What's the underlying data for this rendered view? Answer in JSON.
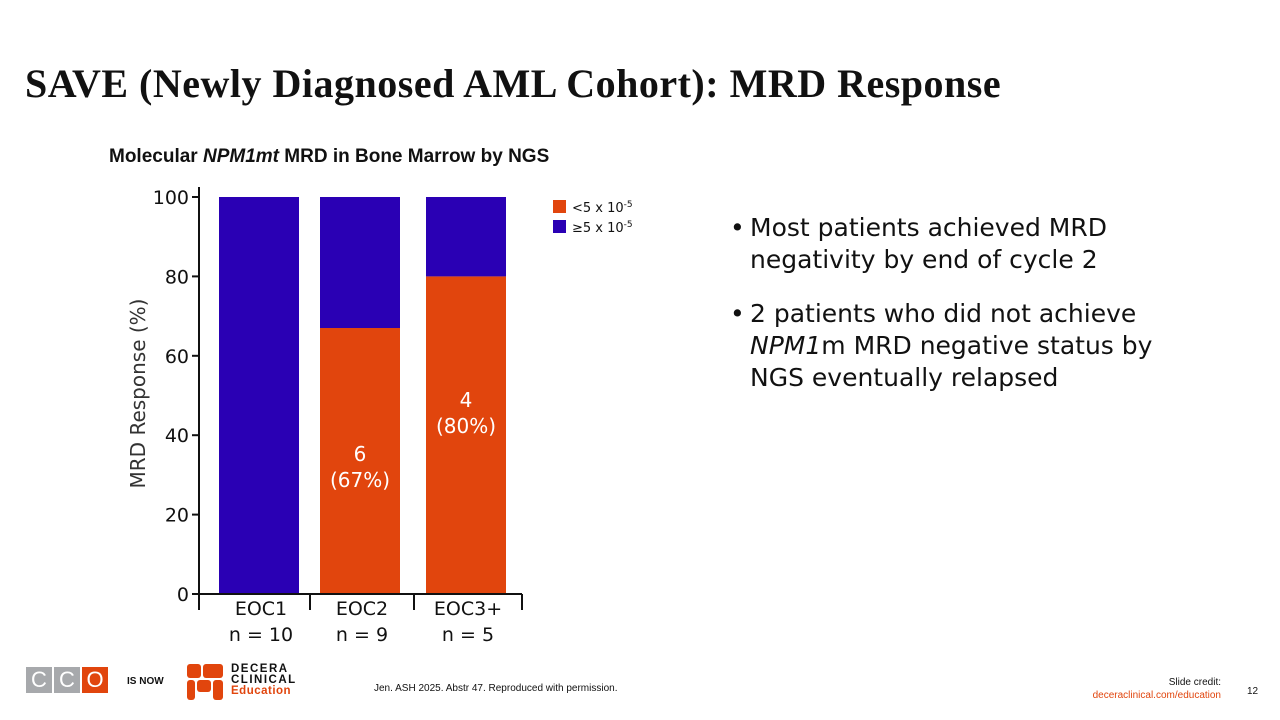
{
  "slide": {
    "title": "SAVE (Newly Diagnosed AML Cohort): MRD Response",
    "chart_title_prefix": "Molecular ",
    "chart_title_italic": "NPM1mt",
    "chart_title_suffix": " MRD in Bone Marrow by NGS",
    "bullets": [
      {
        "text": "Most patients achieved MRD negativity by end of cycle 2"
      },
      {
        "text_italic": "NPM1",
        "text_pre": "2 patients who did not achieve ",
        "text_post": "m MRD negative status by NGS eventually relapsed"
      }
    ],
    "bullet_symbol": "•"
  },
  "footer": {
    "logo_letters": [
      "C",
      "C",
      "O"
    ],
    "is_now": "IS NOW",
    "decera_line1": "DECERA",
    "decera_line2": "CLINICAL",
    "decera_line3": "Education",
    "citation": "Jen. ASH 2025. Abstr 47. Reproduced with permission.",
    "credit_label": "Slide credit:",
    "credit_url": "deceraclinical.com/education",
    "page_number": "12"
  },
  "colors": {
    "orange": "#e1450d",
    "blue": "#2a00b4",
    "logo_gray": "#a7a9ac"
  },
  "chart_data": {
    "type": "bar",
    "stacked": true,
    "ylabel": "MRD Response (%)",
    "ylim": [
      0,
      100
    ],
    "yticks": [
      0,
      20,
      40,
      60,
      80,
      100
    ],
    "categories": [
      "EOC1",
      "EOC2",
      "EOC3+"
    ],
    "category_n": [
      "n = 10",
      "n = 9",
      "n = 5"
    ],
    "series": [
      {
        "name": "<5 x 10",
        "exponent": "-5",
        "color": "#e1450d",
        "values": [
          0,
          67,
          80
        ]
      },
      {
        "name": "≥5 x 10",
        "exponent": "-5",
        "color": "#2a00b4",
        "values": [
          100,
          33,
          20
        ]
      }
    ],
    "data_labels": [
      null,
      {
        "count": "6",
        "pct": "(67%)"
      },
      {
        "count": "4",
        "pct": "(80%)"
      }
    ],
    "legend_position": "top-right"
  }
}
